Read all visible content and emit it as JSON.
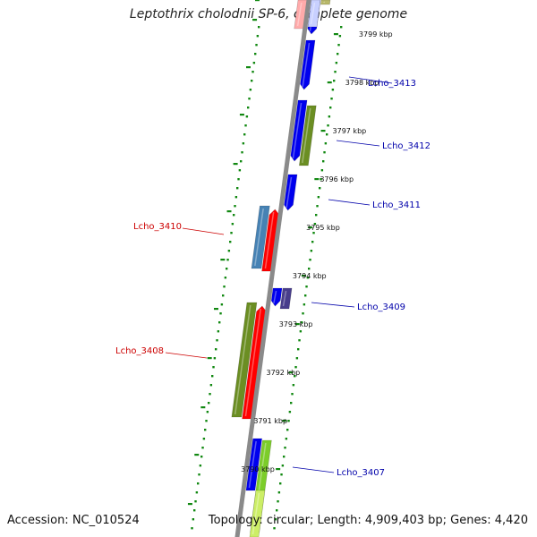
{
  "title": "Leptothrix cholodnii SP-6, complete genome",
  "footer": {
    "accession": "Accession: NC_010524",
    "summary": "Topology: circular; Length: 4,909,403 bp; Genes: 4,420"
  },
  "colors": {
    "backbone": "#8a8a8a",
    "ruler": "#118811",
    "tick_label": "#111111",
    "label_forward": "#0000aa",
    "label_reverse": "#cc0000"
  },
  "ruler_ticks": [
    "3799 kbp",
    "3798 kbp",
    "3797 kbp",
    "3796 kbp",
    "3795 kbp",
    "3794 kbp",
    "3793 kbp",
    "3792 kbp",
    "3791 kbp",
    "3790 kbp"
  ],
  "gene_labels": [
    {
      "text": "Lcho_3413",
      "side": "right"
    },
    {
      "text": "Lcho_3412",
      "side": "right"
    },
    {
      "text": "Lcho_3411",
      "side": "right"
    },
    {
      "text": "Lcho_3410",
      "side": "left"
    },
    {
      "text": "Lcho_3409",
      "side": "right"
    },
    {
      "text": "Lcho_3408",
      "side": "left"
    },
    {
      "text": "Lcho_3407",
      "side": "right"
    }
  ],
  "features": [
    {
      "track": "inner-right",
      "color": "#0000ee",
      "arrow": "down"
    },
    {
      "track": "inner-right",
      "color": "#0000ee",
      "arrow": "down"
    },
    {
      "track": "outer-right",
      "color": "#6b8e23",
      "arrow": "none"
    },
    {
      "track": "inner-right",
      "color": "#0000ee",
      "arrow": "down"
    },
    {
      "track": "outer-left",
      "color": "#4682b4",
      "arrow": "none"
    },
    {
      "track": "inner-left",
      "color": "#ff0000",
      "arrow": "up"
    },
    {
      "track": "inner-right",
      "color": "#0000ee",
      "arrow": "down"
    },
    {
      "track": "outer-right",
      "color": "#483d8b",
      "arrow": "none"
    },
    {
      "track": "outer-left",
      "color": "#6b8e23",
      "arrow": "none"
    },
    {
      "track": "inner-left",
      "color": "#ff0000",
      "arrow": "up"
    },
    {
      "track": "inner-right",
      "color": "#0000ee",
      "arrow": "down"
    },
    {
      "track": "outer-right",
      "color": "#7ccd2a",
      "arrow": "none"
    },
    {
      "track": "inner-right",
      "color": "#0000ee",
      "arrow": "none"
    },
    {
      "track": "outer-right",
      "color": "#ccee66",
      "arrow": "none"
    },
    {
      "track": "inner-left",
      "color": "#ffaaaa",
      "arrow": "none"
    },
    {
      "track": "inner-right",
      "color": "#c8d0ff",
      "arrow": "none"
    },
    {
      "track": "outer-right",
      "color": "#b8b86a",
      "arrow": "none"
    }
  ]
}
